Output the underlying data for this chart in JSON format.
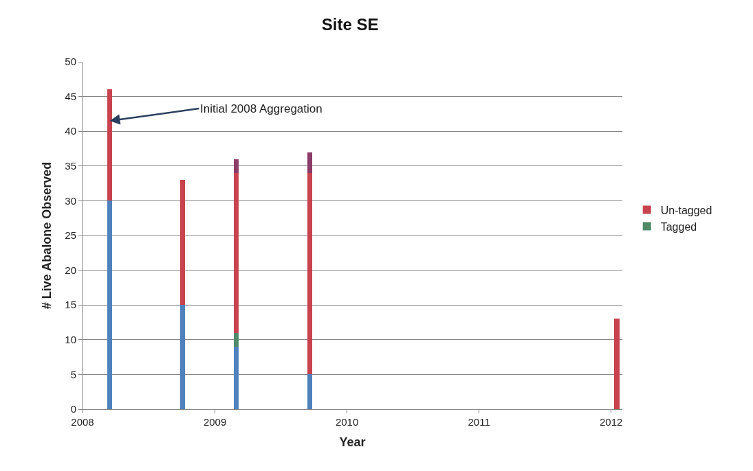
{
  "chart_data": {
    "type": "bar",
    "title": "Site SE",
    "xlabel": "Year",
    "ylabel": "# Live Abalone Observed",
    "x": [
      "2008-03-16",
      "2008-10-04",
      "2009-03-01",
      "2009-09-20",
      "2012-01-17"
    ],
    "stacked": true,
    "series": [
      {
        "color": "#4f81bd",
        "values": [
          30,
          15,
          9,
          5,
          null
        ]
      },
      {
        "name": "Tagged",
        "color": "#4e8a6a",
        "values": [
          null,
          null,
          2,
          null,
          null
        ]
      },
      {
        "name": "Un-tagged",
        "color": "#c8434d",
        "values": [
          16,
          18,
          23,
          29,
          13
        ]
      },
      {
        "color": "#8c3c68",
        "values": [
          null,
          null,
          2,
          3,
          null
        ]
      }
    ],
    "xlim": [
      "2008-01-01",
      "2012-02-01"
    ],
    "xticks": [
      {
        "value": "2008-01-01",
        "label": "2008"
      },
      {
        "value": "2009-01-01",
        "label": "2009"
      },
      {
        "value": "2010-01-01",
        "label": "2010"
      },
      {
        "value": "2011-01-01",
        "label": "2011"
      },
      {
        "value": "2012-01-01",
        "label": "2012"
      }
    ],
    "ylim": [
      0,
      50
    ],
    "yticks": [
      0,
      5,
      10,
      15,
      20,
      25,
      30,
      35,
      40,
      45,
      50
    ],
    "grid": "y",
    "legend": "right",
    "annotations": [
      {
        "text": "Initial 2008 Aggregation",
        "x": "2008-03-16",
        "y": 41.5
      }
    ]
  }
}
